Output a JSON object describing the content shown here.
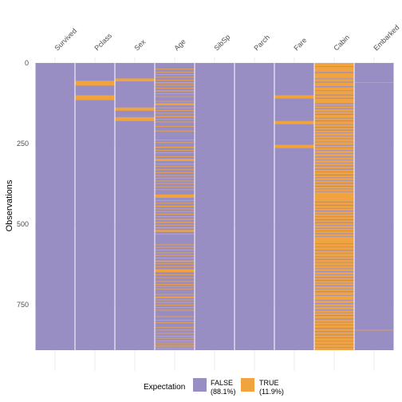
{
  "chart_data": {
    "type": "heatmap",
    "title": "",
    "xlabel": "",
    "ylabel": "Observations",
    "columns": [
      "Survived",
      "Pclass",
      "Sex",
      "Age",
      "SibSp",
      "Parch",
      "Fare",
      "Cabin",
      "Embarked"
    ],
    "n_rows": 891,
    "ylim": [
      0,
      891
    ],
    "y_ticks": [
      0,
      250,
      500,
      750
    ],
    "y_tick_labels": [
      "0",
      "250",
      "500",
      "750"
    ],
    "grid": true,
    "legend": {
      "title": "Expectation",
      "position": "bottom",
      "entries": [
        {
          "label": "FALSE",
          "pct_label": "(88.1%)",
          "color": "#998ec3"
        },
        {
          "label": "TRUE",
          "pct_label": "(11.9%)",
          "color": "#f1a340"
        }
      ]
    },
    "colors": {
      "false": "#998ec3",
      "true": "#f1a340"
    },
    "true_rows": {
      "Survived": [],
      "Pclass": [
        [
          55,
          70
        ],
        [
          100,
          115
        ]
      ],
      "Sex": [
        [
          48,
          57
        ],
        [
          138,
          148
        ],
        [
          168,
          180
        ]
      ],
      "Age": [
        [
          18,
          20
        ],
        [
          28,
          30
        ],
        [
          35,
          37
        ],
        [
          43,
          45
        ],
        [
          52,
          54
        ],
        [
          60,
          63
        ],
        [
          68,
          70
        ],
        [
          77,
          79
        ],
        [
          85,
          88
        ],
        [
          94,
          96
        ],
        [
          103,
          105
        ],
        [
          118,
          120
        ],
        [
          125,
          131
        ],
        [
          138,
          140
        ],
        [
          146,
          148
        ],
        [
          155,
          157
        ],
        [
          165,
          168
        ],
        [
          174,
          176
        ],
        [
          182,
          184
        ],
        [
          196,
          198
        ],
        [
          210,
          212
        ],
        [
          238,
          240
        ],
        [
          246,
          248
        ],
        [
          260,
          263
        ],
        [
          270,
          272
        ],
        [
          277,
          279
        ],
        [
          290,
          292
        ],
        [
          297,
          304
        ],
        [
          312,
          314
        ],
        [
          320,
          322
        ],
        [
          330,
          332
        ],
        [
          339,
          341
        ],
        [
          348,
          350
        ],
        [
          356,
          358
        ],
        [
          365,
          367
        ],
        [
          373,
          375
        ],
        [
          383,
          385
        ],
        [
          392,
          394
        ],
        [
          408,
          418
        ],
        [
          426,
          428
        ],
        [
          434,
          436
        ],
        [
          443,
          446
        ],
        [
          452,
          454
        ],
        [
          460,
          462
        ],
        [
          468,
          470
        ],
        [
          476,
          478
        ],
        [
          484,
          487
        ],
        [
          493,
          496
        ],
        [
          502,
          504
        ],
        [
          510,
          513
        ],
        [
          518,
          524
        ],
        [
          530,
          532
        ],
        [
          563,
          565
        ],
        [
          571,
          573
        ],
        [
          579,
          581
        ],
        [
          588,
          590
        ],
        [
          596,
          598
        ],
        [
          604,
          606
        ],
        [
          613,
          617
        ],
        [
          622,
          624
        ],
        [
          631,
          633
        ],
        [
          640,
          649
        ],
        [
          656,
          658
        ],
        [
          665,
          667
        ],
        [
          677,
          679
        ],
        [
          686,
          688
        ],
        [
          692,
          694
        ],
        [
          700,
          702
        ],
        [
          717,
          719
        ],
        [
          725,
          729
        ],
        [
          734,
          736
        ],
        [
          742,
          744
        ],
        [
          750,
          752
        ],
        [
          758,
          760
        ],
        [
          766,
          768
        ],
        [
          786,
          788
        ],
        [
          797,
          799
        ],
        [
          805,
          807
        ],
        [
          820,
          822
        ],
        [
          828,
          830
        ],
        [
          838,
          840
        ],
        [
          847,
          849
        ],
        [
          853,
          855
        ],
        [
          861,
          863
        ],
        [
          868,
          870
        ],
        [
          875,
          877
        ],
        [
          880,
          882
        ],
        [
          886,
          888
        ]
      ],
      "SibSp": [],
      "Parch": [],
      "Fare": [
        [
          100,
          110
        ],
        [
          180,
          190
        ],
        [
          254,
          264
        ]
      ],
      "Cabin": [
        [
          0,
          10
        ],
        [
          12,
          28
        ],
        [
          31,
          48
        ],
        [
          50,
          58
        ],
        [
          61,
          72
        ],
        [
          75,
          85
        ],
        [
          87,
          98
        ],
        [
          101,
          108
        ],
        [
          111,
          125
        ],
        [
          128,
          132
        ],
        [
          135,
          140
        ],
        [
          143,
          150
        ],
        [
          152,
          158
        ],
        [
          161,
          170
        ],
        [
          172,
          178
        ],
        [
          181,
          190
        ],
        [
          192,
          198
        ],
        [
          201,
          207
        ],
        [
          210,
          216
        ],
        [
          218,
          226
        ],
        [
          228,
          234
        ],
        [
          236,
          244
        ],
        [
          246,
          254
        ],
        [
          257,
          262
        ],
        [
          264,
          270
        ],
        [
          272,
          280
        ],
        [
          282,
          290
        ],
        [
          293,
          300
        ],
        [
          302,
          310
        ],
        [
          312,
          318
        ],
        [
          321,
          328
        ],
        [
          331,
          337
        ],
        [
          339,
          346
        ],
        [
          349,
          355
        ],
        [
          357,
          364
        ],
        [
          366,
          372
        ],
        [
          375,
          381
        ],
        [
          384,
          390
        ],
        [
          392,
          398
        ],
        [
          400,
          430
        ],
        [
          433,
          440
        ],
        [
          443,
          450
        ],
        [
          452,
          458
        ],
        [
          461,
          467
        ],
        [
          469,
          476
        ],
        [
          478,
          485
        ],
        [
          488,
          494
        ],
        [
          497,
          503
        ],
        [
          505,
          512
        ],
        [
          514,
          520
        ],
        [
          522,
          528
        ],
        [
          531,
          537
        ],
        [
          539,
          560
        ],
        [
          562,
          570
        ],
        [
          572,
          580
        ],
        [
          583,
          590
        ],
        [
          592,
          600
        ],
        [
          602,
          608
        ],
        [
          611,
          618
        ],
        [
          620,
          628
        ],
        [
          630,
          637
        ],
        [
          639,
          646
        ],
        [
          649,
          656
        ],
        [
          658,
          664
        ],
        [
          667,
          673
        ],
        [
          676,
          682
        ],
        [
          684,
          690
        ],
        [
          693,
          700
        ],
        [
          702,
          708
        ],
        [
          711,
          720
        ],
        [
          722,
          735
        ],
        [
          737,
          745
        ],
        [
          748,
          755
        ],
        [
          757,
          765
        ],
        [
          768,
          774
        ],
        [
          776,
          782
        ],
        [
          785,
          793
        ],
        [
          796,
          803
        ],
        [
          805,
          812
        ],
        [
          814,
          822
        ],
        [
          825,
          832
        ],
        [
          835,
          842
        ],
        [
          845,
          852
        ],
        [
          854,
          862
        ],
        [
          864,
          872
        ],
        [
          874,
          882
        ],
        [
          884,
          891
        ]
      ],
      "Embarked": [
        [
          60,
          62
        ],
        [
          828,
          830
        ]
      ]
    }
  }
}
